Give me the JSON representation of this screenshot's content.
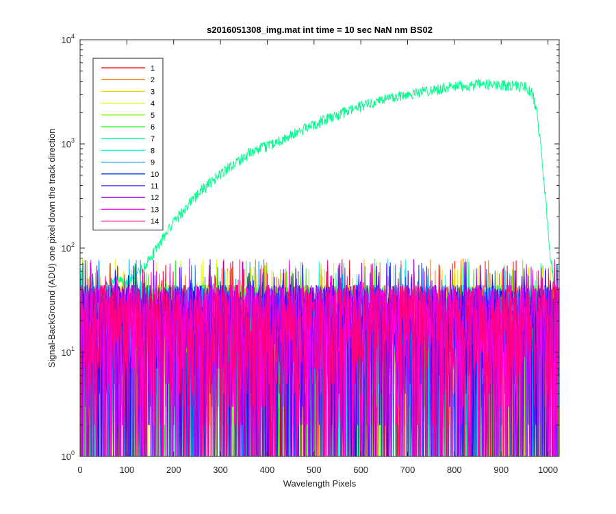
{
  "chart_data": {
    "type": "line",
    "title": "s2016051308_img.mat int time = 10 sec  NaN nm BS02",
    "xlabel": "Wavelength Pixels",
    "ylabel": "Signal-BackGround (ADU) one pixel down the track direction",
    "xlim": [
      0,
      1024
    ],
    "ylim": [
      1,
      10000
    ],
    "yscale": "log",
    "x_ticks": [
      0,
      100,
      200,
      300,
      400,
      500,
      600,
      700,
      800,
      900,
      1000
    ],
    "y_ticks": [
      {
        "base": "10",
        "exp": "0",
        "value": 1
      },
      {
        "base": "10",
        "exp": "1",
        "value": 10
      },
      {
        "base": "10",
        "exp": "2",
        "value": 100
      },
      {
        "base": "10",
        "exp": "3",
        "value": 1000
      },
      {
        "base": "10",
        "exp": "4",
        "value": 10000
      }
    ],
    "legend_position": "top-left",
    "signal_series_index": 6,
    "signal_profile": {
      "x": [
        0,
        20,
        40,
        60,
        80,
        100,
        120,
        140,
        160,
        180,
        200,
        220,
        240,
        260,
        280,
        300,
        320,
        340,
        360,
        380,
        400,
        450,
        500,
        550,
        600,
        650,
        700,
        750,
        800,
        850,
        880,
        900,
        940,
        955,
        965,
        975,
        985,
        995,
        1005,
        1015,
        1023
      ],
      "y": [
        30,
        32,
        36,
        42,
        50,
        45,
        55,
        70,
        95,
        130,
        175,
        230,
        290,
        360,
        430,
        520,
        610,
        700,
        800,
        880,
        960,
        1200,
        1550,
        1900,
        2300,
        2700,
        3000,
        3300,
        3550,
        3700,
        3750,
        3700,
        3600,
        3500,
        3100,
        2200,
        900,
        300,
        80,
        45,
        35
      ]
    },
    "noise_max": 80,
    "series": [
      {
        "name": "1",
        "color": "#ff0000"
      },
      {
        "name": "2",
        "color": "#ff6e00"
      },
      {
        "name": "3",
        "color": "#ffc800"
      },
      {
        "name": "4",
        "color": "#d6ff00"
      },
      {
        "name": "5",
        "color": "#7cff00"
      },
      {
        "name": "6",
        "color": "#21ff21"
      },
      {
        "name": "7",
        "color": "#00ff8c"
      },
      {
        "name": "8",
        "color": "#00ffea"
      },
      {
        "name": "9",
        "color": "#0096ff"
      },
      {
        "name": "10",
        "color": "#0033ff"
      },
      {
        "name": "11",
        "color": "#3300ff"
      },
      {
        "name": "12",
        "color": "#a000ff"
      },
      {
        "name": "13",
        "color": "#ff00e6"
      },
      {
        "name": "14",
        "color": "#ff0080"
      }
    ]
  }
}
